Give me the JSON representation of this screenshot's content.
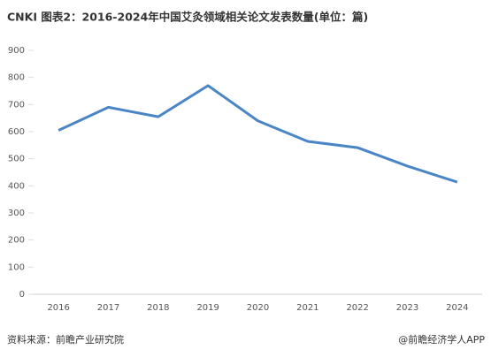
{
  "chart_data": {
    "type": "line",
    "title": "CNKI 图表2：2016-2024年中国艾灸领域相关论文发表数量(单位：篇)",
    "categories": [
      "2016",
      "2017",
      "2018",
      "2019",
      "2020",
      "2021",
      "2022",
      "2023",
      "2024"
    ],
    "series": [
      {
        "name": "论文发表数量",
        "color": "#4a86c5",
        "values": [
          605,
          690,
          655,
          770,
          640,
          564,
          541,
          473,
          414
        ]
      }
    ],
    "ylim": [
      0,
      900
    ],
    "yticks": [
      0,
      100,
      200,
      300,
      400,
      500,
      600,
      700,
      800,
      900
    ],
    "grid": false,
    "source": "资料来源：前瞻产业研究院",
    "credit": "@前瞻经济学人APP"
  }
}
